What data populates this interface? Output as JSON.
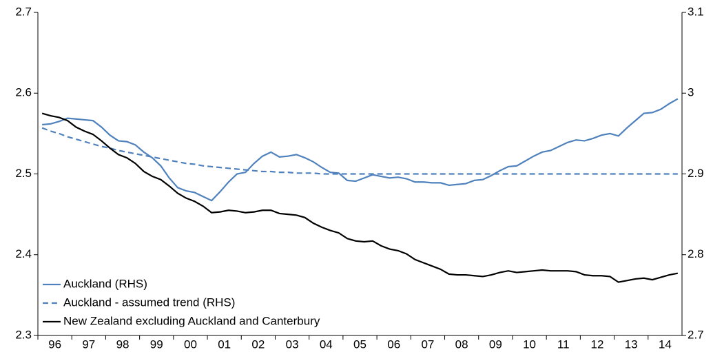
{
  "chart_data": {
    "type": "line",
    "categories": [
      "96",
      null,
      null,
      null,
      "97",
      null,
      null,
      null,
      "98",
      null,
      null,
      null,
      "99",
      null,
      null,
      null,
      "00",
      null,
      null,
      null,
      "01",
      null,
      null,
      null,
      "02",
      null,
      null,
      null,
      "03",
      null,
      null,
      null,
      "04",
      null,
      null,
      null,
      "05",
      null,
      null,
      null,
      "06",
      null,
      null,
      null,
      "07",
      null,
      null,
      null,
      "08",
      null,
      null,
      null,
      "09",
      null,
      null,
      null,
      "10",
      null,
      null,
      null,
      "11",
      null,
      null,
      null,
      "12",
      null,
      null,
      null,
      "13",
      null,
      null,
      null,
      "14",
      null,
      null,
      null
    ],
    "series": [
      {
        "name": "Auckland (RHS)",
        "color": "#4f81bd",
        "axis": "y2",
        "dash": false,
        "values": [
          2.961,
          2.962,
          2.965,
          2.969,
          2.968,
          2.967,
          2.966,
          2.958,
          2.948,
          2.941,
          2.94,
          2.936,
          2.927,
          2.92,
          2.91,
          2.895,
          2.883,
          2.879,
          2.877,
          2.872,
          2.867,
          2.878,
          2.89,
          2.9,
          2.902,
          2.913,
          2.922,
          2.927,
          2.921,
          2.922,
          2.924,
          2.92,
          2.915,
          2.908,
          2.902,
          2.901,
          2.892,
          2.891,
          2.895,
          2.899,
          2.897,
          2.895,
          2.896,
          2.894,
          2.89,
          2.89,
          2.889,
          2.889,
          2.886,
          2.887,
          2.888,
          2.892,
          2.893,
          2.898,
          2.904,
          2.909,
          2.91,
          2.916,
          2.922,
          2.927,
          2.929,
          2.934,
          2.939,
          2.942,
          2.941,
          2.944,
          2.948,
          2.95,
          2.947,
          2.957,
          2.966,
          2.975,
          2.976,
          2.98,
          2.987,
          2.993
        ]
      },
      {
        "name": "Auckland - assumed trend (RHS)",
        "color": "#4f81bd",
        "axis": "y2",
        "dash": true,
        "values": [
          2.957,
          2.953,
          2.95,
          2.946,
          2.943,
          2.94,
          2.937,
          2.934,
          2.932,
          2.929,
          2.927,
          2.925,
          2.923,
          2.921,
          2.919,
          2.917,
          2.915,
          2.913,
          2.912,
          2.91,
          2.909,
          2.908,
          2.907,
          2.906,
          2.905,
          2.904,
          2.903,
          2.903,
          2.902,
          2.902,
          2.901,
          2.901,
          2.901,
          2.9,
          2.9,
          2.9,
          2.9,
          2.9,
          2.9,
          2.9,
          2.9,
          2.9,
          2.9,
          2.9,
          2.9,
          2.9,
          2.9,
          2.9,
          2.9,
          2.9,
          2.9,
          2.9,
          2.9,
          2.9,
          2.9,
          2.9,
          2.9,
          2.9,
          2.9,
          2.9,
          2.9,
          2.9,
          2.9,
          2.9,
          2.9,
          2.9,
          2.9,
          2.9,
          2.9,
          2.9,
          2.9,
          2.9,
          2.9,
          2.9,
          2.9,
          2.9
        ]
      },
      {
        "name": "New Zealand excluding Auckland and Canterbury",
        "color": "#000000",
        "axis": "y",
        "dash": false,
        "values": [
          2.575,
          2.572,
          2.57,
          2.566,
          2.558,
          2.553,
          2.549,
          2.541,
          2.532,
          2.524,
          2.52,
          2.513,
          2.503,
          2.497,
          2.493,
          2.485,
          2.476,
          2.47,
          2.466,
          2.46,
          2.452,
          2.453,
          2.455,
          2.454,
          2.452,
          2.453,
          2.455,
          2.455,
          2.451,
          2.45,
          2.449,
          2.446,
          2.439,
          2.434,
          2.43,
          2.427,
          2.42,
          2.417,
          2.416,
          2.417,
          2.411,
          2.407,
          2.405,
          2.401,
          2.394,
          2.39,
          2.386,
          2.382,
          2.376,
          2.375,
          2.375,
          2.374,
          2.373,
          2.375,
          2.378,
          2.38,
          2.378,
          2.379,
          2.38,
          2.381,
          2.38,
          2.38,
          2.38,
          2.379,
          2.375,
          2.374,
          2.374,
          2.373,
          2.366,
          2.368,
          2.37,
          2.371,
          2.369,
          2.372,
          2.375,
          2.377
        ]
      }
    ],
    "ylim": [
      2.3,
      2.7
    ],
    "yticks": [
      2.3,
      2.4,
      2.5,
      2.6,
      2.7
    ],
    "y2lim": [
      2.7,
      3.1
    ],
    "y2ticks": [
      2.7,
      2.8,
      2.9,
      3,
      3.1
    ],
    "grid": false,
    "legend": "lower left"
  }
}
